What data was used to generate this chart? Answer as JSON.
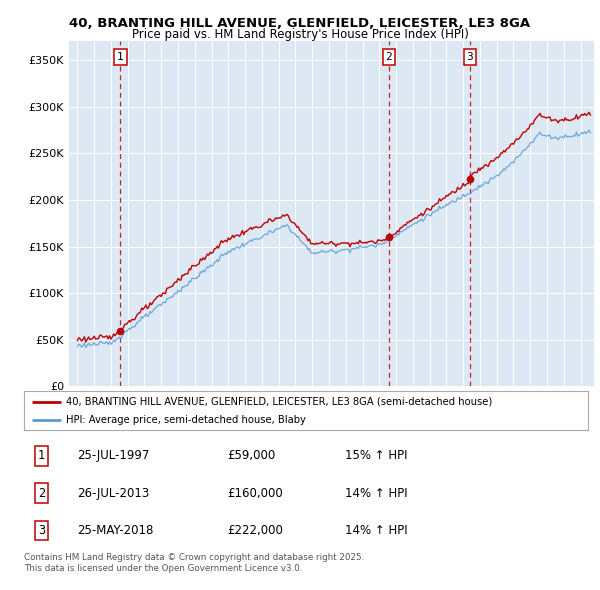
{
  "title_line1": "40, BRANTING HILL AVENUE, GLENFIELD, LEICESTER, LE3 8GA",
  "title_line2": "Price paid vs. HM Land Registry's House Price Index (HPI)",
  "bg_color": "#dce9f5",
  "fig_bg_color": "#ffffff",
  "red_line_label": "40, BRANTING HILL AVENUE, GLENFIELD, LEICESTER, LE3 8GA (semi-detached house)",
  "blue_line_label": "HPI: Average price, semi-detached house, Blaby",
  "sale_points": [
    {
      "date_year": 1997.57,
      "price": 59000,
      "label": "1"
    },
    {
      "date_year": 2013.57,
      "price": 160000,
      "label": "2"
    },
    {
      "date_year": 2018.4,
      "price": 222000,
      "label": "3"
    }
  ],
  "annotations": [
    {
      "label": "1",
      "date": "25-JUL-1997",
      "price": "£59,000",
      "hpi_change": "15% ↑ HPI"
    },
    {
      "label": "2",
      "date": "26-JUL-2013",
      "price": "£160,000",
      "hpi_change": "14% ↑ HPI"
    },
    {
      "label": "3",
      "date": "25-MAY-2018",
      "price": "£222,000",
      "hpi_change": "14% ↑ HPI"
    }
  ],
  "footer": "Contains HM Land Registry data © Crown copyright and database right 2025.\nThis data is licensed under the Open Government Licence v3.0.",
  "ylim": [
    0,
    370000
  ],
  "xlim_start": 1994.5,
  "xlim_end": 2025.8
}
